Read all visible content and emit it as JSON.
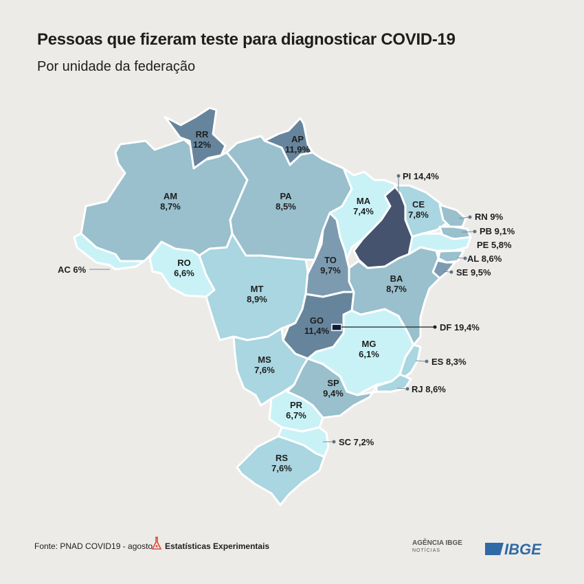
{
  "title": "Pessoas que fizeram teste para diagnosticar COVID-19",
  "subtitle": "Por unidade da federação",
  "colors": {
    "background": "#edebe8",
    "border": "#ffffff",
    "scale": [
      "#c9f2f7",
      "#a9d6e0",
      "#99c0cc",
      "#7d9bb0",
      "#66859c",
      "#45536f",
      "#0f1a3a"
    ]
  },
  "states": {
    "RR": {
      "uf": "RR",
      "value": "12%"
    },
    "AP": {
      "uf": "AP",
      "value": "11,9%"
    },
    "AM": {
      "uf": "AM",
      "value": "8,7%"
    },
    "PA": {
      "uf": "PA",
      "value": "8,5%"
    },
    "MA": {
      "uf": "MA",
      "value": "7,4%"
    },
    "CE": {
      "uf": "CE",
      "value": "7,8%"
    },
    "RO": {
      "uf": "RO",
      "value": "6,6%"
    },
    "TO": {
      "uf": "TO",
      "value": "9,7%"
    },
    "MT": {
      "uf": "MT",
      "value": "8,9%"
    },
    "BA": {
      "uf": "BA",
      "value": "8,7%"
    },
    "GO": {
      "uf": "GO",
      "value": "11,4%"
    },
    "MG": {
      "uf": "MG",
      "value": "6,1%"
    },
    "MS": {
      "uf": "MS",
      "value": "7,6%"
    },
    "SP": {
      "uf": "SP",
      "value": "9,4%"
    },
    "PR": {
      "uf": "PR",
      "value": "6,7%"
    },
    "RS": {
      "uf": "RS",
      "value": "7,6%"
    }
  },
  "callouts": {
    "PI": "PI 14,4%",
    "RN": "RN 9%",
    "PB": "PB 9,1%",
    "PE": "PE 5,8%",
    "AL": "AL 8,6%",
    "SE": "SE 9,5%",
    "AC": "AC 6%",
    "DF": "DF 19,4%",
    "ES": "ES 8,3%",
    "RJ": "RJ 8,6%",
    "SC": "SC 7,2%"
  },
  "footer": {
    "source": "Fonte: PNAD COVID19 - agosto",
    "experimental": "Estatísticas Experimentais",
    "agencia": "AGÊNCIA IBGE",
    "noticias": "NOTÍCIAS",
    "ibge": "IBGE"
  }
}
